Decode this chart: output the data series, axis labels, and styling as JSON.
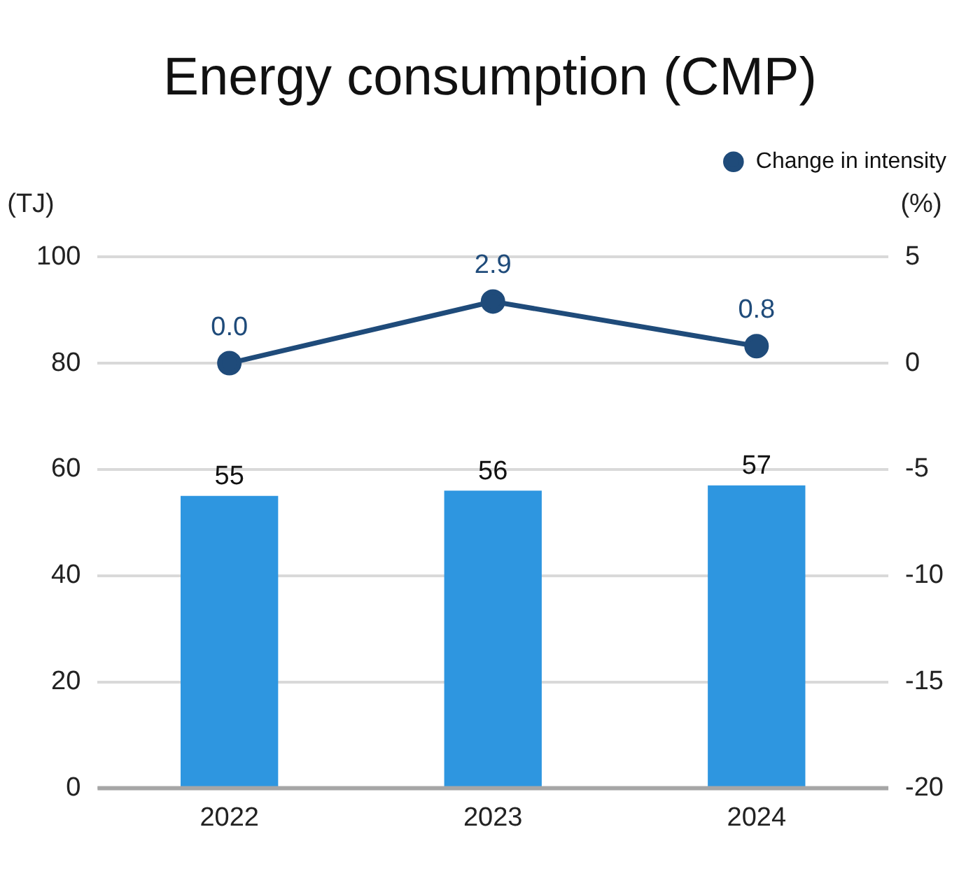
{
  "chart_data": {
    "type": "bar",
    "title": "Energy consumption (CMP)",
    "ylabel": "(TJ)",
    "y2label": "(%)",
    "categories": [
      "2022",
      "2023",
      "2024"
    ],
    "series": [
      {
        "color": "#2e96e0",
        "values": [
          55,
          56,
          57
        ],
        "value_labels": [
          "55",
          "56",
          "57"
        ]
      },
      {
        "type": "line",
        "name": "Change in intensity",
        "color": "#1f4b7a",
        "axis": "y2",
        "values": [
          0.0,
          2.9,
          0.8
        ],
        "value_labels": [
          "0.0",
          "2.9",
          "0.8"
        ]
      }
    ],
    "ylim": [
      0,
      100
    ],
    "yticks": [
      0,
      20,
      40,
      60,
      80,
      100
    ],
    "y2lim": [
      -20,
      5
    ],
    "y2ticks": [
      -20,
      -15,
      -10,
      -5,
      0,
      5
    ],
    "grid": "y",
    "legend": "top right",
    "marker": "circle",
    "line_style": "solid"
  }
}
